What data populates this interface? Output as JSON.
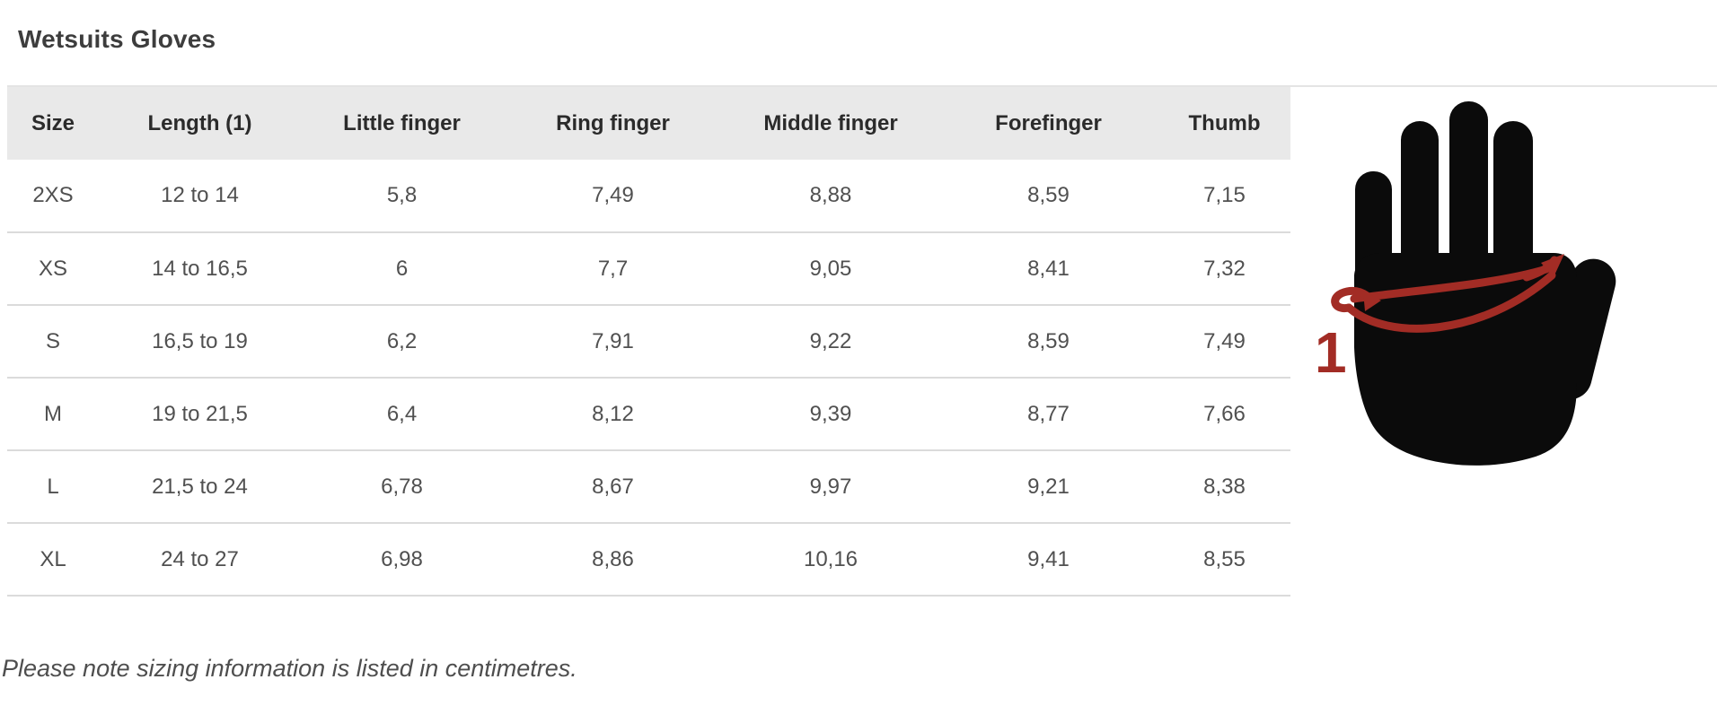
{
  "page": {
    "title": "Wetsuits Gloves",
    "note": "Please note sizing information is listed in centimetres."
  },
  "table": {
    "columns": [
      "Size",
      "Length (1)",
      "Little finger",
      "Ring finger",
      "Middle finger",
      "Forefinger",
      "Thumb"
    ],
    "rows": [
      [
        "2XS",
        "12 to 14",
        "5,8",
        "7,49",
        "8,88",
        "8,59",
        "7,15"
      ],
      [
        "XS",
        "14 to 16,5",
        "6",
        "7,7",
        "9,05",
        "8,41",
        "7,32"
      ],
      [
        "S",
        "16,5 to 19",
        "6,2",
        "7,91",
        "9,22",
        "8,59",
        "7,49"
      ],
      [
        "M",
        "19 to 21,5",
        "6,4",
        "8,12",
        "9,39",
        "8,77",
        "7,66"
      ],
      [
        "L",
        "21,5 to 24",
        "6,78",
        "8,67",
        "9,97",
        "9,21",
        "8,38"
      ],
      [
        "XL",
        "24 to 27",
        "6,98",
        "8,86",
        "10,16",
        "9,41",
        "8,55"
      ]
    ],
    "unit": "centimetres"
  },
  "figure": {
    "ref_label": "1",
    "description": "hand silhouette with circumference measurement arrow"
  },
  "colors": {
    "header_bg": "#e9e9e9",
    "row_border": "#dbdbdb",
    "header_text": "#2b2b2b",
    "cell_text": "#505050",
    "title_text": "#3d3d3d",
    "accent_red": "#a22c25",
    "silhouette_black": "#0b0b0b"
  }
}
